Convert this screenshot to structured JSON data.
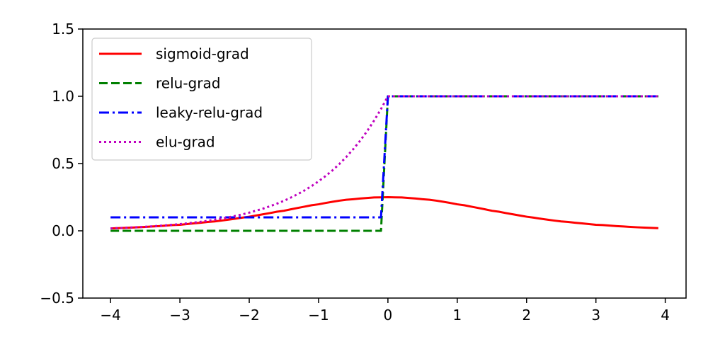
{
  "chart_data": {
    "type": "line",
    "title": "",
    "xlabel": "",
    "ylabel": "",
    "xlim": [
      -4.4,
      4.3
    ],
    "ylim": [
      -0.5,
      1.5
    ],
    "xticks": [
      -4,
      -3,
      -2,
      -1,
      0,
      1,
      2,
      3,
      4
    ],
    "yticks": [
      -0.5,
      0.0,
      0.5,
      1.0,
      1.5
    ],
    "xtick_labels": [
      "−4",
      "−3",
      "−2",
      "−1",
      "0",
      "1",
      "2",
      "3",
      "4"
    ],
    "ytick_labels": [
      "−0.5",
      "0.0",
      "0.5",
      "1.0",
      "1.5"
    ],
    "grid": false,
    "legend_position": "top-left",
    "x": [
      -4.0,
      -3.9,
      -3.8,
      -3.7,
      -3.6,
      -3.5,
      -3.4,
      -3.3,
      -3.2,
      -3.1,
      -3.0,
      -2.9,
      -2.8,
      -2.7,
      -2.6,
      -2.5,
      -2.4,
      -2.3,
      -2.2,
      -2.1,
      -2.0,
      -1.9,
      -1.8,
      -1.7,
      -1.6,
      -1.5,
      -1.4,
      -1.3,
      -1.2,
      -1.1,
      -1.0,
      -0.9,
      -0.8,
      -0.7,
      -0.6,
      -0.5,
      -0.4,
      -0.3,
      -0.2,
      -0.1,
      0.0,
      0.1,
      0.2,
      0.3,
      0.4,
      0.5,
      0.6,
      0.7,
      0.8,
      0.9,
      1.0,
      1.1,
      1.2,
      1.3,
      1.4,
      1.5,
      1.6,
      1.7,
      1.8,
      1.9,
      2.0,
      2.1,
      2.2,
      2.3,
      2.4,
      2.5,
      2.6,
      2.7,
      2.8,
      2.9,
      3.0,
      3.1,
      3.2,
      3.3,
      3.4,
      3.5,
      3.6,
      3.7,
      3.8,
      3.9
    ],
    "series": [
      {
        "name": "sigmoid-grad",
        "color": "#ff0000",
        "dash": "solid",
        "values": [
          0.018,
          0.02,
          0.022,
          0.024,
          0.026,
          0.029,
          0.032,
          0.035,
          0.039,
          0.043,
          0.045,
          0.05,
          0.055,
          0.06,
          0.066,
          0.07,
          0.076,
          0.083,
          0.09,
          0.098,
          0.105,
          0.114,
          0.123,
          0.132,
          0.142,
          0.149,
          0.16,
          0.17,
          0.18,
          0.19,
          0.197,
          0.207,
          0.216,
          0.224,
          0.231,
          0.235,
          0.24,
          0.244,
          0.248,
          0.249,
          0.25,
          0.249,
          0.248,
          0.244,
          0.24,
          0.235,
          0.231,
          0.224,
          0.216,
          0.207,
          0.197,
          0.19,
          0.18,
          0.17,
          0.16,
          0.149,
          0.142,
          0.132,
          0.123,
          0.114,
          0.105,
          0.098,
          0.09,
          0.083,
          0.076,
          0.07,
          0.066,
          0.06,
          0.055,
          0.05,
          0.045,
          0.043,
          0.039,
          0.035,
          0.032,
          0.029,
          0.026,
          0.024,
          0.022,
          0.02
        ]
      },
      {
        "name": "relu-grad",
        "color": "#008000",
        "dash": "dashed",
        "values": [
          0,
          0,
          0,
          0,
          0,
          0,
          0,
          0,
          0,
          0,
          0,
          0,
          0,
          0,
          0,
          0,
          0,
          0,
          0,
          0,
          0,
          0,
          0,
          0,
          0,
          0,
          0,
          0,
          0,
          0,
          0,
          0,
          0,
          0,
          0,
          0,
          0,
          0,
          0,
          0,
          1,
          1,
          1,
          1,
          1,
          1,
          1,
          1,
          1,
          1,
          1,
          1,
          1,
          1,
          1,
          1,
          1,
          1,
          1,
          1,
          1,
          1,
          1,
          1,
          1,
          1,
          1,
          1,
          1,
          1,
          1,
          1,
          1,
          1,
          1,
          1,
          1,
          1,
          1,
          1
        ]
      },
      {
        "name": "leaky-relu-grad",
        "color": "#0000ff",
        "dash": "dashdot",
        "values": [
          0.1,
          0.1,
          0.1,
          0.1,
          0.1,
          0.1,
          0.1,
          0.1,
          0.1,
          0.1,
          0.1,
          0.1,
          0.1,
          0.1,
          0.1,
          0.1,
          0.1,
          0.1,
          0.1,
          0.1,
          0.1,
          0.1,
          0.1,
          0.1,
          0.1,
          0.1,
          0.1,
          0.1,
          0.1,
          0.1,
          0.1,
          0.1,
          0.1,
          0.1,
          0.1,
          0.1,
          0.1,
          0.1,
          0.1,
          0.1,
          1,
          1,
          1,
          1,
          1,
          1,
          1,
          1,
          1,
          1,
          1,
          1,
          1,
          1,
          1,
          1,
          1,
          1,
          1,
          1,
          1,
          1,
          1,
          1,
          1,
          1,
          1,
          1,
          1,
          1,
          1,
          1,
          1,
          1,
          1,
          1,
          1,
          1,
          1,
          1
        ]
      },
      {
        "name": "elu-grad",
        "color": "#bf00bf",
        "dash": "dotted",
        "values": [
          0.018,
          0.02,
          0.022,
          0.025,
          0.027,
          0.03,
          0.033,
          0.037,
          0.041,
          0.045,
          0.05,
          0.055,
          0.061,
          0.067,
          0.074,
          0.082,
          0.091,
          0.1,
          0.111,
          0.122,
          0.135,
          0.15,
          0.165,
          0.183,
          0.202,
          0.223,
          0.247,
          0.273,
          0.301,
          0.333,
          0.368,
          0.407,
          0.449,
          0.497,
          0.549,
          0.607,
          0.67,
          0.741,
          0.819,
          0.905,
          1,
          1,
          1,
          1,
          1,
          1,
          1,
          1,
          1,
          1,
          1,
          1,
          1,
          1,
          1,
          1,
          1,
          1,
          1,
          1,
          1,
          1,
          1,
          1,
          1,
          1,
          1,
          1,
          1,
          1,
          1,
          1,
          1,
          1,
          1,
          1,
          1,
          1,
          1,
          1
        ]
      }
    ]
  }
}
